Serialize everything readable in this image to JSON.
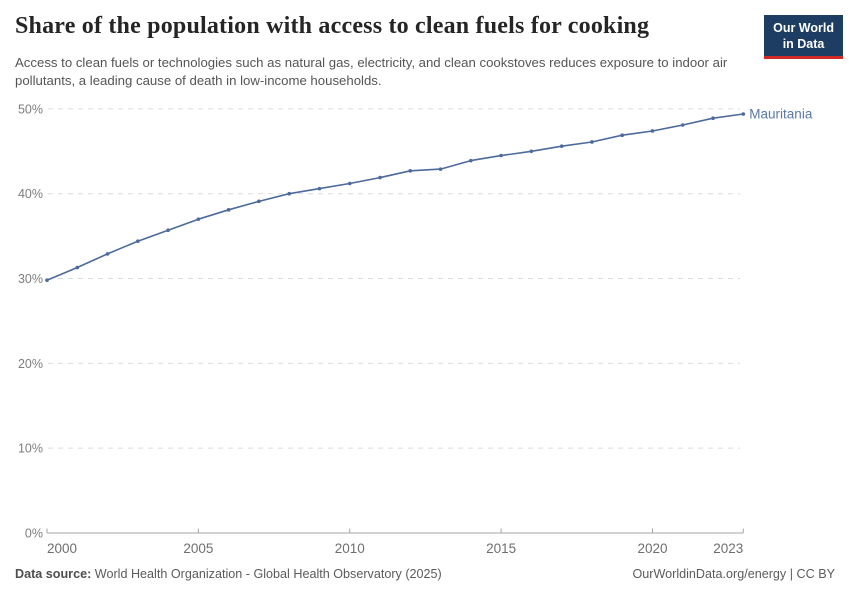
{
  "header": {
    "title": "Share of the population with access to clean fuels for cooking",
    "subtitle": "Access to clean fuels or technologies such as natural gas, electricity, and clean cookstoves reduces exposure to indoor air pollutants, a leading cause of death in low-income households.",
    "logo": {
      "line1": "Our World",
      "line2": "in Data",
      "bg_color": "#1d3d63",
      "stripe_color": "#cf2a26"
    }
  },
  "chart_data": {
    "type": "line",
    "title": "Share of the population with access to clean fuels for cooking",
    "xlabel": "",
    "ylabel": "",
    "xlim": [
      2000,
      2023
    ],
    "ylim": [
      0,
      50
    ],
    "grid": "horizontal-dashed",
    "legend_position": "end-of-line-label",
    "x_ticks": [
      2000,
      2005,
      2010,
      2015,
      2020,
      2023
    ],
    "x_tick_labels": [
      "2000",
      "2005",
      "2010",
      "2015",
      "2020",
      "2023"
    ],
    "y_ticks": [
      0,
      10,
      20,
      30,
      40,
      50
    ],
    "y_tick_labels": [
      "0%",
      "10%",
      "20%",
      "30%",
      "40%",
      "50%"
    ],
    "series": [
      {
        "name": "Mauritania",
        "color": "#4c6a9c",
        "label_color": "#5b79a8",
        "x": [
          2000,
          2001,
          2002,
          2003,
          2004,
          2005,
          2006,
          2007,
          2008,
          2009,
          2010,
          2011,
          2012,
          2013,
          2014,
          2015,
          2016,
          2017,
          2018,
          2019,
          2020,
          2021,
          2022,
          2023
        ],
        "values": [
          29.8,
          31.3,
          32.9,
          34.4,
          35.7,
          37.0,
          38.1,
          39.1,
          40.0,
          40.6,
          41.2,
          41.9,
          42.7,
          42.9,
          43.9,
          44.5,
          45.0,
          45.6,
          46.1,
          46.9,
          47.4,
          48.1,
          48.9,
          49.4
        ]
      }
    ],
    "axis_color": "#a5a5a5",
    "gridline_color": "#dcdcdc",
    "tick_label_color": "#7d7d7d"
  },
  "footer": {
    "source_label": "Data source:",
    "source_text": " World Health Organization - Global Health Observatory (2025)",
    "attribution": "OurWorldinData.org/energy | CC BY"
  }
}
